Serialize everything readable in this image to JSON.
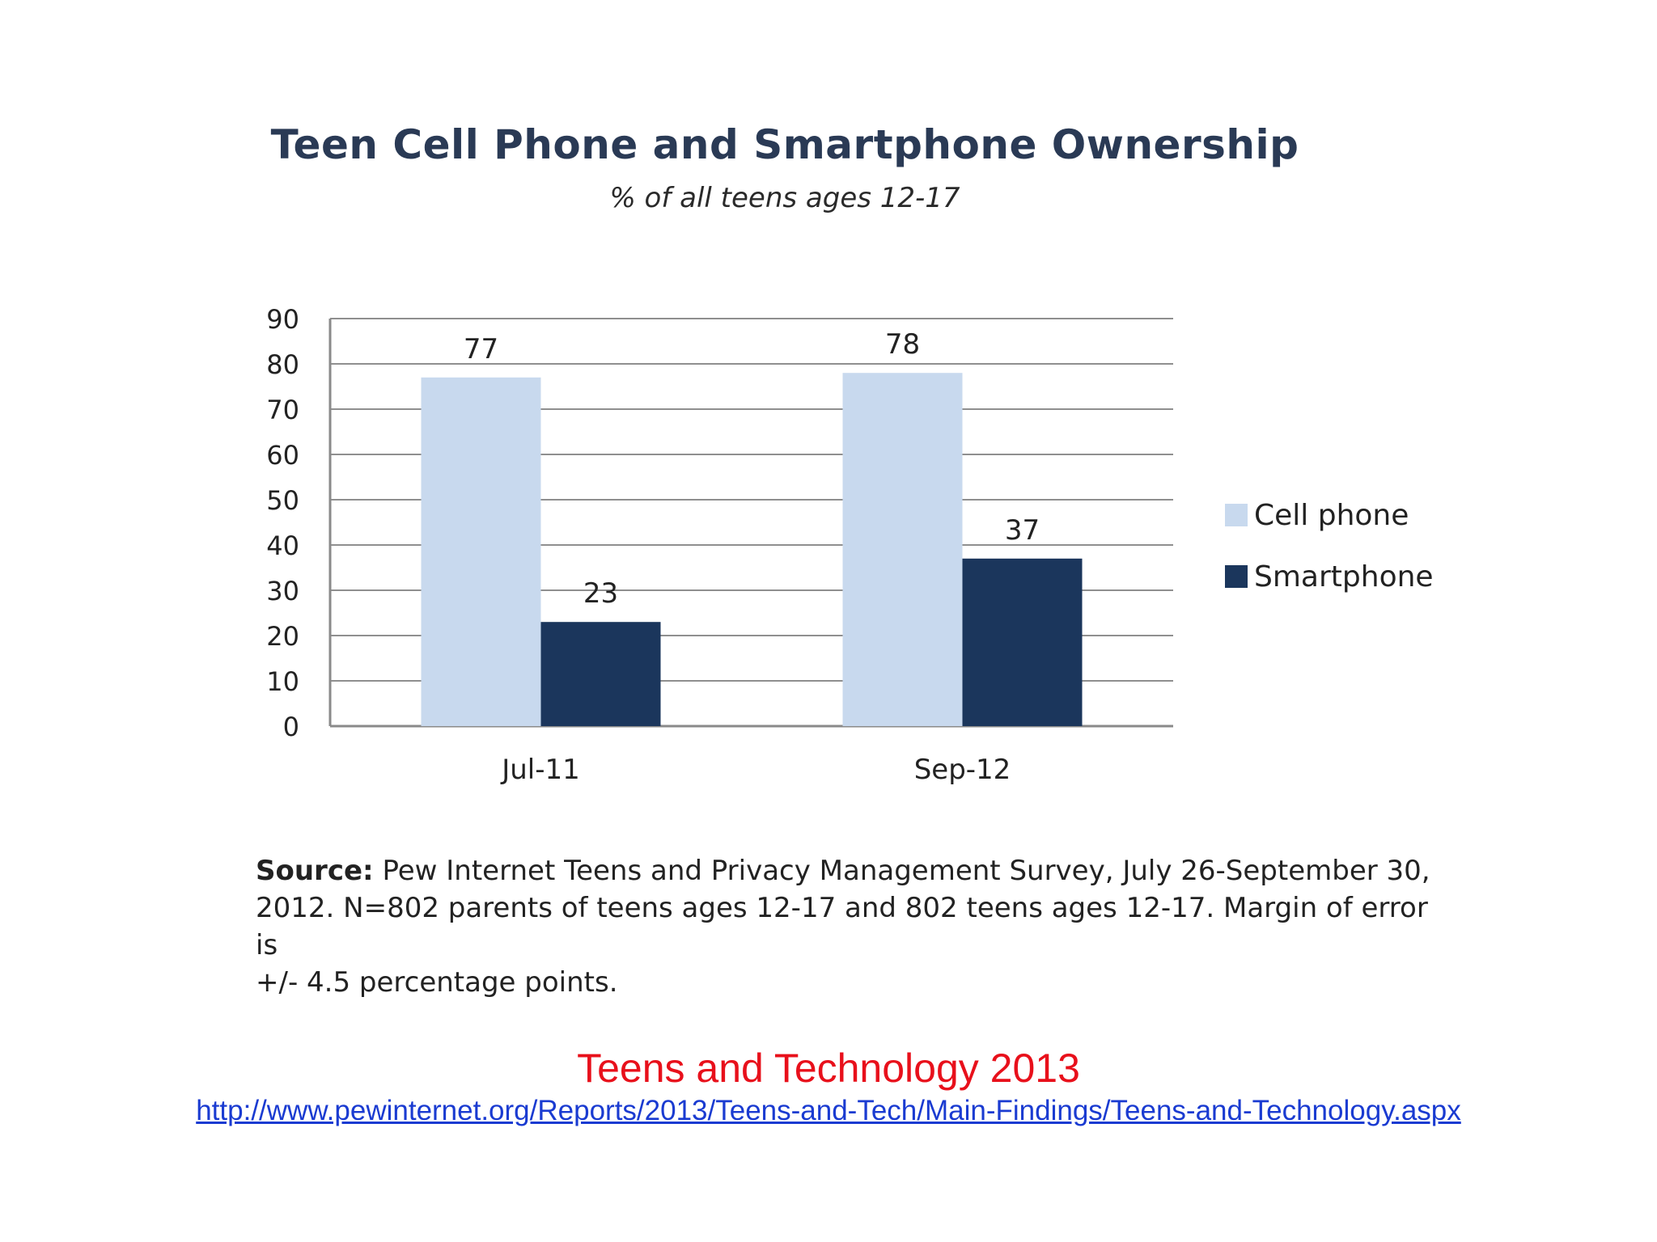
{
  "chart_data": {
    "type": "bar",
    "title": "Teen Cell Phone and Smartphone Ownership",
    "subtitle": "% of all teens ages 12-17",
    "categories": [
      "Jul-11",
      "Sep-12"
    ],
    "series": [
      {
        "name": "Cell phone",
        "values": [
          77,
          78
        ],
        "color": "#c8d9ee"
      },
      {
        "name": "Smartphone",
        "values": [
          23,
          37
        ],
        "color": "#1b365c"
      }
    ],
    "yticks": [
      "0",
      "10",
      "20",
      "30",
      "40",
      "50",
      "60",
      "70",
      "80",
      "90"
    ],
    "ylim": [
      0,
      90
    ],
    "grid": true,
    "legend_position": "right",
    "data_labels": true
  },
  "source": {
    "label": "Source:",
    "line1": " Pew Internet Teens and Privacy Management Survey, July 26-September 30,",
    "line2": "2012. N=802 parents of teens ages 12-17 and 802 teens ages 12-17.  Margin of error is",
    "line3": "+/- 4.5 percentage points."
  },
  "footer": {
    "title": "Teens and Technology 2013",
    "link": "http://www.pewinternet.org/Reports/2013/Teens-and-Tech/Main-Findings/Teens-and-Technology.aspx"
  }
}
